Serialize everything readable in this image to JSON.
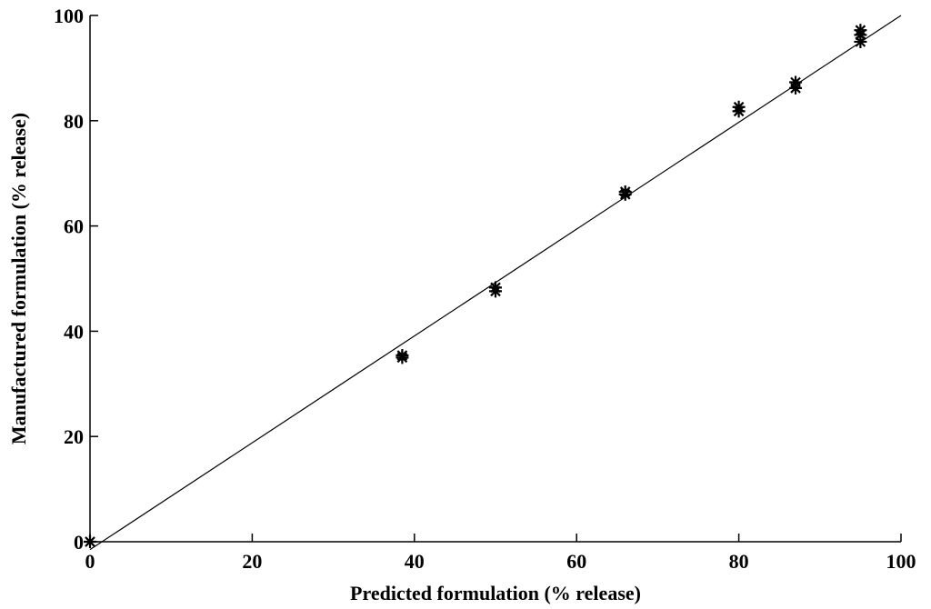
{
  "chart_data": {
    "type": "scatter",
    "xlabel": "Predicted formulation (% release)",
    "ylabel": "Manufactured formulation (% release)",
    "xlim": [
      0,
      100
    ],
    "ylim": [
      0,
      100
    ],
    "xticks": [
      "0",
      "20",
      "40",
      "60",
      "80",
      "100"
    ],
    "yticks": [
      "0",
      "20",
      "40",
      "60",
      "80",
      "100"
    ],
    "xtick_values": [
      0,
      20,
      40,
      60,
      80,
      100
    ],
    "ytick_values": [
      0,
      20,
      40,
      60,
      80,
      100
    ],
    "grid": false,
    "marker": "asterisk",
    "series": [
      {
        "points": [
          {
            "x": 0,
            "y": 0
          },
          {
            "x": 38.5,
            "y": 35.0
          },
          {
            "x": 38.5,
            "y": 35.4
          },
          {
            "x": 50.0,
            "y": 47.6
          },
          {
            "x": 50.0,
            "y": 48.3
          },
          {
            "x": 66.0,
            "y": 66.0
          },
          {
            "x": 66.0,
            "y": 66.5
          },
          {
            "x": 80.0,
            "y": 81.8
          },
          {
            "x": 80.0,
            "y": 82.6
          },
          {
            "x": 87.0,
            "y": 86.2
          },
          {
            "x": 87.0,
            "y": 87.3
          },
          {
            "x": 95.0,
            "y": 95.0
          },
          {
            "x": 95.0,
            "y": 96.3
          },
          {
            "x": 95.0,
            "y": 97.2
          }
        ]
      }
    ],
    "fit_line": {
      "x": [
        0,
        100
      ],
      "y": [
        -1.5,
        100
      ]
    },
    "colors": {
      "axis": "#000000",
      "marker": "#000000",
      "line": "#000000",
      "background": "#ffffff"
    }
  }
}
